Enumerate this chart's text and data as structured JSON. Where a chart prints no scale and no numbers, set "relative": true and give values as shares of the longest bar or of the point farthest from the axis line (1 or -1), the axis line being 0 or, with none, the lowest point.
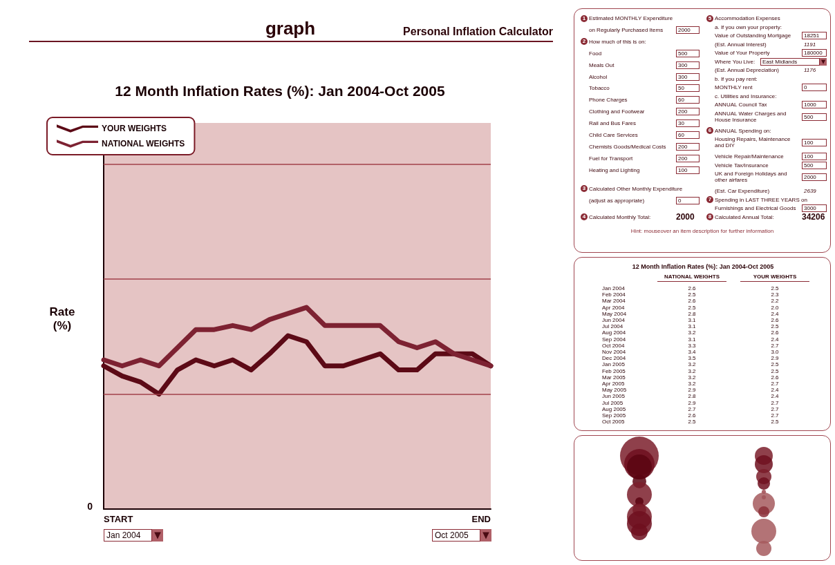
{
  "chart_data": [
    {
      "type": "line",
      "title": "12 Month Inflation Rates (%): Jan 2004-Oct 2005",
      "ylabel": "Rate (%)",
      "relative": true,
      "categories": [
        null,
        null,
        null,
        null,
        null,
        null,
        null,
        null,
        null,
        null,
        null,
        null,
        null,
        null,
        null,
        null,
        null,
        null,
        null,
        null,
        null,
        null
      ],
      "series": [
        {
          "name": "YOUR WEIGHTS",
          "color": "#5c0a16",
          "values": [
            0.71,
            0.66,
            0.63,
            0.57,
            0.69,
            0.74,
            0.71,
            0.74,
            0.69,
            0.77,
            0.86,
            0.83,
            0.71,
            0.71,
            0.74,
            0.77,
            0.69,
            0.69,
            0.77,
            0.77,
            0.77,
            0.71
          ]
        },
        {
          "name": "NATIONAL WEIGHTS",
          "color": "#7d2232",
          "values": [
            0.74,
            0.71,
            0.74,
            0.71,
            0.8,
            0.89,
            0.89,
            0.91,
            0.89,
            0.94,
            0.97,
            1,
            0.91,
            0.91,
            0.91,
            0.91,
            0.83,
            0.8,
            0.83,
            0.77,
            0.74,
            0.71
          ]
        }
      ],
      "ref_lines": [
        {
          "axis": "y",
          "value": 0.57,
          "color": "#a0404a"
        },
        {
          "axis": "y",
          "value": 1.14,
          "color": "#a0404a"
        },
        {
          "axis": "y",
          "value": 1.71,
          "color": "#a0404a"
        }
      ],
      "legend": "top left",
      "line_style": "solid",
      "annotations": [
        "graph",
        "Personal Inflation Calculator",
        "START",
        "END",
        "Jan 2004",
        "Oct 2005",
        "0"
      ]
    },
    {
      "type": "other",
      "annotations": [
        "1",
        "Estimated MONTHLY Expenditure",
        "on Regularly Purchased Items",
        "2000",
        "2",
        "How much of this is on:",
        "Food",
        "500",
        "Meals Out",
        "300",
        "Alcohol",
        "300",
        "Tobacco",
        "50",
        "Phone Charges",
        "60",
        "Clothing and Footwear",
        "200",
        "Rail and Bus Fares",
        "30",
        "Child Care Services",
        "60",
        "Chemists Goods/Medical Costs",
        "200",
        "Fuel for Transport",
        "200",
        "Heating and Lighting",
        "100",
        "3",
        "Calculated Other Monthly Expenditure",
        "(adjust as appropriate)",
        "0",
        "4",
        "Calculated Monthly Total:",
        "2000",
        "5",
        "Accommodation Expenses",
        "a. If you own your property:",
        "Value of Outstanding Mortgage",
        "18251",
        "(Est. Annual Interest)",
        "1191",
        "Value of Your Property",
        "180000",
        "Where You Live:",
        "East Midlands",
        "(Est. Annual Depreciation)",
        "1176",
        "b. If you pay rent:",
        "MONTHLY rent",
        "0",
        "c. Utilities and Insurance:",
        "ANNUAL Council Tax",
        "1000",
        "ANNUAL Water Charges and House Insurance",
        "500",
        "6",
        "ANNUAL Spending on:",
        "Housing Repairs, Maintenance and DIY",
        "100",
        "Vehicle Repair/Maintenance",
        "100",
        "Vehicle Tax/Insurance",
        "500",
        "UK and Foreign Holidays and other airfares",
        "2000",
        "(Est. Car Expenditure)",
        "2639",
        "7",
        "Spending in LAST THREE YEARS on",
        "Furnishings and Electrical Goods",
        "3000",
        "8",
        "Calculated Annual Total:",
        "34206",
        "Hint: mouseover an item description for further information"
      ]
    },
    {
      "type": "other",
      "annotations": [
        "12 Month Inflation Rates (%): Jan 2004-Oct 2005",
        "NATIONAL WEIGHTS",
        "YOUR WEIGHTS",
        "Jan 2004",
        "2.6",
        "2.5",
        "Feb 2004",
        "2.5",
        "2.3",
        "Mar 2004",
        "2.6",
        "2.2",
        "Apr 2004",
        "2.5",
        "2.0",
        "May 2004",
        "2.8",
        "2.4",
        "Jun 2004",
        "3.1",
        "2.6",
        "Jul 2004",
        "3.1",
        "2.5",
        "Aug 2004",
        "3.2",
        "2.6",
        "Sep 2004",
        "3.1",
        "2.4",
        "Oct 2004",
        "3.3",
        "2.7",
        "Nov 2004",
        "3.4",
        "3.0",
        "Dec 2004",
        "3.5",
        "2.9",
        "Jan 2005",
        "3.2",
        "2.5",
        "Feb 2005",
        "3.2",
        "2.5",
        "Mar 2005",
        "3.2",
        "2.6",
        "Apr 2005",
        "3.2",
        "2.7",
        "May 2005",
        "2.9",
        "2.4",
        "Jun 2005",
        "2.8",
        "2.4",
        "Jul 2005",
        "2.9",
        "2.7",
        "Aug 2005",
        "2.7",
        "2.7",
        "Sep 2005",
        "2.6",
        "2.7",
        "Oct 2005",
        "2.5",
        "2.5"
      ]
    }
  ]
}
